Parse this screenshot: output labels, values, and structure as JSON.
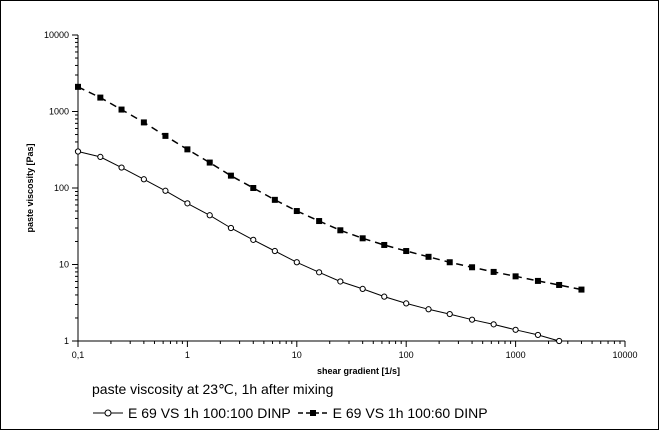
{
  "chart_data": {
    "type": "line",
    "xlabel": "shear gradient  [1/s]",
    "ylabel": "paste viscosity  [Pas]",
    "x_scale": "log",
    "y_scale": "log",
    "xlim": [
      0.1,
      10000
    ],
    "ylim": [
      1,
      10000
    ],
    "x_tick_labels": [
      "0,1",
      "1",
      "10",
      "100",
      "1000",
      "10000"
    ],
    "y_tick_labels": [
      "1",
      "10",
      "100",
      "1000",
      "10000"
    ],
    "grid": false,
    "caption": "paste viscosity at 23℃, 1h after mixing",
    "legend_position": "bottom",
    "series": [
      {
        "name": "E 69 VS 1h 100:100 DINP",
        "marker": "open-circle",
        "line_style": "solid",
        "color": "#000000",
        "x": [
          0.1,
          0.16,
          0.25,
          0.4,
          0.63,
          1,
          1.6,
          2.5,
          4,
          6.3,
          10,
          16,
          25,
          40,
          63,
          100,
          160,
          250,
          400,
          630,
          1000,
          1600,
          2500
        ],
        "y": [
          300,
          255,
          185,
          130,
          92,
          63,
          44,
          30,
          21,
          15,
          10.7,
          7.9,
          6.0,
          4.8,
          3.8,
          3.1,
          2.6,
          2.25,
          1.9,
          1.65,
          1.4,
          1.2,
          1.0
        ]
      },
      {
        "name": "E 69 VS 1h 100:60 DINP",
        "marker": "filled-square",
        "line_style": "dashed",
        "color": "#000000",
        "x": [
          0.1,
          0.16,
          0.25,
          0.4,
          0.63,
          1,
          1.6,
          2.5,
          4,
          6.3,
          10,
          16,
          25,
          40,
          63,
          100,
          160,
          250,
          400,
          630,
          1000,
          1600,
          2500,
          4000
        ],
        "y": [
          2100,
          1520,
          1060,
          720,
          480,
          320,
          215,
          145,
          100,
          70,
          50,
          37,
          28,
          22,
          18,
          15,
          12.6,
          10.7,
          9.2,
          8.0,
          7.0,
          6.1,
          5.4,
          4.7
        ]
      }
    ]
  }
}
